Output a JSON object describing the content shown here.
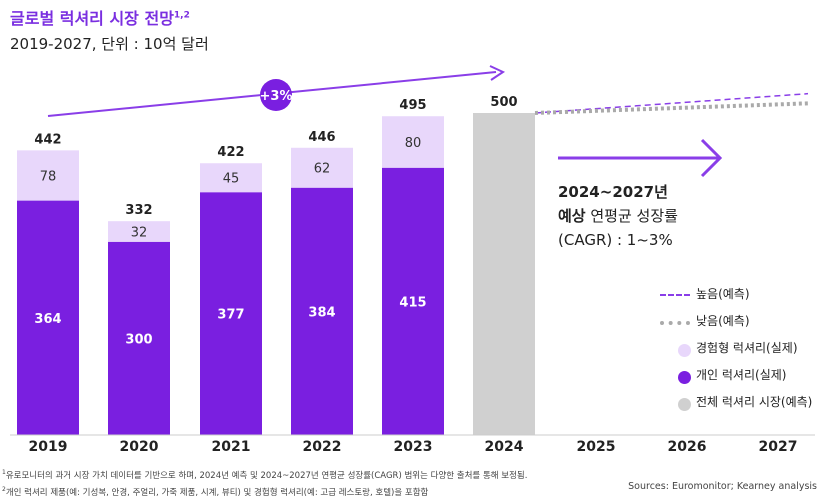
{
  "title": "글로벌 럭셔리 시장 전망",
  "title_sup": "1,2",
  "subtitle": "2019-2027, 단위 : 10억 달러",
  "growth_badge": "+3%",
  "cagr": {
    "line1": "2024~2027년",
    "line2_bold": "예상",
    "line2_rest": " 연평균 성장률",
    "line3": "(CAGR) : 1~3%"
  },
  "legend": {
    "high": "높음(예측)",
    "low": "낮음(예측)",
    "experiential": "경험형 럭셔리(실제)",
    "personal": "개인 럭셔리(실제)",
    "total": "전체 럭셔리 시장(예측)"
  },
  "footnotes": {
    "note1_sup": "1",
    "note1": "유로모니터의 과거 시장 가치 데이터를 기반으로 하며, 2024년 예측 및 2024~2027년 연평균 성장률(CAGR) 범위는 다양한 출처를 통해 보정됨.",
    "note2_sup": "2",
    "note2": "개인 럭셔리 제품(예: 기성복, 안경, 주얼리, 가죽 제품, 시계, 뷰티) 및 경험형 럭셔리(예: 고급 레스토랑, 호텔)을 포함함"
  },
  "sources": "Sources: Euromonitor; Kearney analysis",
  "colors": {
    "personal": "#7a1fe0",
    "experiential": "#e8d7fb",
    "forecast_total": "#d0d0d0",
    "accent": "#8a3ee8",
    "low_line": "#aaaaaa"
  },
  "chart_data": {
    "type": "bar",
    "stacked": true,
    "categories": [
      "2019",
      "2020",
      "2021",
      "2022",
      "2023",
      "2024",
      "2025",
      "2026",
      "2027"
    ],
    "series": [
      {
        "name": "개인 럭셔리(실제)",
        "values": [
          364,
          300,
          377,
          384,
          415,
          null,
          null,
          null,
          null
        ]
      },
      {
        "name": "경험형 럭셔리(실제)",
        "values": [
          78,
          32,
          45,
          62,
          80,
          null,
          null,
          null,
          null
        ]
      },
      {
        "name": "전체 럭셔리 시장(예측)",
        "values": [
          null,
          null,
          null,
          null,
          null,
          500,
          null,
          null,
          null
        ]
      }
    ],
    "totals": [
      442,
      332,
      422,
      446,
      495,
      500,
      null,
      null,
      null
    ],
    "forecast_lines": [
      {
        "name": "높음(예측)",
        "x": [
          "2024",
          "2027"
        ],
        "y": [
          500,
          530
        ],
        "style": "dashed"
      },
      {
        "name": "낮음(예측)",
        "x": [
          "2024",
          "2027"
        ],
        "y": [
          500,
          515
        ],
        "style": "dotted"
      }
    ],
    "ylim": [
      0,
      530
    ],
    "grid": false,
    "legend_position": "right"
  }
}
